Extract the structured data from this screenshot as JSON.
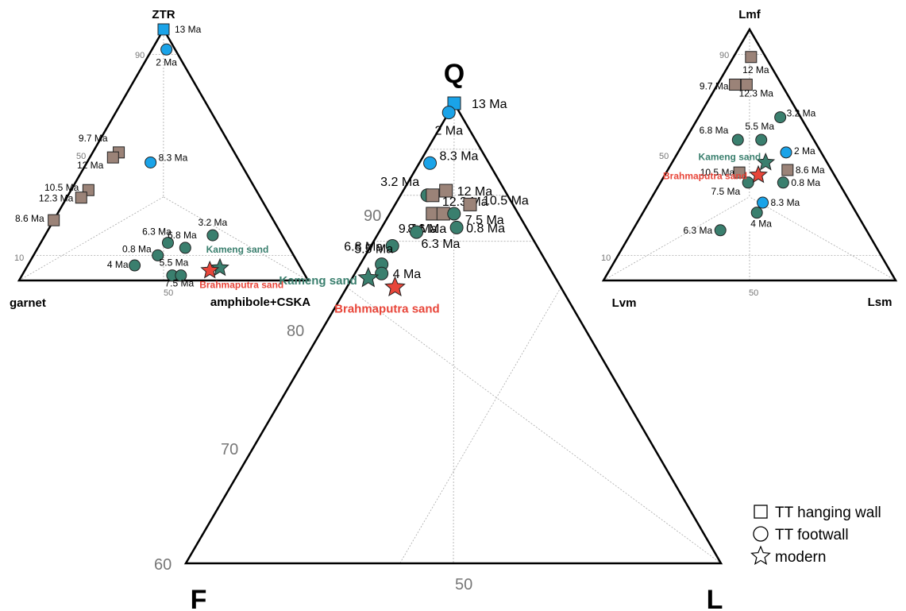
{
  "colors": {
    "hanging_wall": "#9b8378",
    "footwall": "#3a7f6e",
    "young": "#1aa3e8",
    "kameng": "#3a7f6e",
    "brahmaputra": "#e8463a",
    "frame": "#000000",
    "grid": "#aaaaaa",
    "tick": "#777777"
  },
  "legend": {
    "items": [
      {
        "symbol": "square-icon",
        "label": "TT hanging wall"
      },
      {
        "symbol": "circle-icon",
        "label": "TT footwall"
      },
      {
        "symbol": "star-icon",
        "label": "modern"
      }
    ]
  },
  "chart_data": [
    {
      "type": "ternary-scatter",
      "id": "heavy",
      "apex_labels": {
        "top": "ZTR",
        "left": "garnet",
        "right": "amphibole+CSKA"
      },
      "grid_labels": [
        "90",
        "50",
        "10",
        "50"
      ],
      "points": [
        {
          "label": "13 Ma",
          "group": "young",
          "shape": "square",
          "t": 100,
          "r": 0
        },
        {
          "label": "2 Ma",
          "group": "young",
          "shape": "circle",
          "t": 92,
          "r": 5
        },
        {
          "label": "9.7 Ma",
          "group": "hanging_wall",
          "shape": "square",
          "t": 51,
          "r": 9
        },
        {
          "label": "12 Ma",
          "group": "hanging_wall",
          "shape": "square",
          "t": 49,
          "r": 8
        },
        {
          "label": "8.3 Ma",
          "group": "young",
          "shape": "circle",
          "t": 47,
          "r": 22
        },
        {
          "label": "10.5 Ma",
          "group": "hanging_wall",
          "shape": "square",
          "t": 36,
          "r": 6
        },
        {
          "label": "12.3 Ma",
          "group": "hanging_wall",
          "shape": "square",
          "t": 33,
          "r": 5
        },
        {
          "label": "8.6 Ma",
          "group": "hanging_wall",
          "shape": "square",
          "t": 24,
          "r": 0
        },
        {
          "label": "3.2 Ma",
          "group": "footwall",
          "shape": "circle",
          "t": 18,
          "r": 58
        },
        {
          "label": "6.3 Ma",
          "group": "footwall",
          "shape": "circle",
          "t": 15,
          "r": 44
        },
        {
          "label": "6.8 Ma",
          "group": "footwall",
          "shape": "circle",
          "t": 13,
          "r": 51
        },
        {
          "label": "0.8 Ma",
          "group": "footwall",
          "shape": "circle",
          "t": 10,
          "r": 43
        },
        {
          "label": "4 Ma",
          "group": "footwall",
          "shape": "circle",
          "t": 6,
          "r": 37
        },
        {
          "label": "5.5 Ma",
          "group": "footwall",
          "shape": "circle",
          "t": 2,
          "r": 52
        },
        {
          "label": "7.5 Ma",
          "group": "footwall",
          "shape": "circle",
          "t": 2,
          "r": 55
        },
        {
          "label": "Kameng sand",
          "group": "kameng",
          "shape": "star",
          "t": 5,
          "r": 67
        },
        {
          "label": "Brahmaputra sand",
          "group": "brahmaputra",
          "shape": "star",
          "t": 4,
          "r": 64
        }
      ]
    },
    {
      "type": "ternary-scatter",
      "id": "qfl",
      "apex_labels": {
        "top": "Q",
        "left": "F",
        "right": "L"
      },
      "grid_labels": [
        "90",
        "80",
        "70",
        "60",
        "50"
      ],
      "points": [
        {
          "label": "13 Ma",
          "group": "young",
          "shape": "square",
          "t": 100,
          "r": 0
        },
        {
          "label": "2 Ma",
          "group": "young",
          "shape": "circle",
          "t": 98,
          "r": 0
        },
        {
          "label": "8.3 Ma",
          "group": "young",
          "shape": "circle",
          "t": 87,
          "r": 2
        },
        {
          "label": "12 Ma",
          "group": "hanging_wall",
          "shape": "square",
          "t": 81,
          "r": 8
        },
        {
          "label": "3.2 Ma",
          "group": "footwall",
          "shape": "circle",
          "t": 80,
          "r": 5
        },
        {
          "label": "12.3 Ma",
          "group": "hanging_wall",
          "shape": "square",
          "t": 80,
          "r": 6
        },
        {
          "label": "10.5 Ma",
          "group": "hanging_wall",
          "shape": "square",
          "t": 78,
          "r": 14
        },
        {
          "label": "9.7 Ma",
          "group": "hanging_wall",
          "shape": "square",
          "t": 76,
          "r": 8
        },
        {
          "label": "8.6 Ma",
          "group": "hanging_wall",
          "shape": "square",
          "t": 76,
          "r": 10
        },
        {
          "label": "7.5 Ma",
          "group": "footwall",
          "shape": "circle",
          "t": 76,
          "r": 12
        },
        {
          "label": "0.8 Ma",
          "group": "footwall",
          "shape": "circle",
          "t": 73,
          "r": 14
        },
        {
          "label": "6.3 Ma",
          "group": "footwall",
          "shape": "circle",
          "t": 72,
          "r": 7
        },
        {
          "label": "6.8 Ma",
          "group": "footwall",
          "shape": "circle",
          "t": 69,
          "r": 4
        },
        {
          "label": "5.5 Ma",
          "group": "footwall",
          "shape": "circle",
          "t": 65,
          "r": 4
        },
        {
          "label": "4 Ma",
          "group": "footwall",
          "shape": "circle",
          "t": 63,
          "r": 5
        },
        {
          "label": "Kameng sand",
          "group": "kameng",
          "shape": "star",
          "t": 62,
          "r": 3
        },
        {
          "label": "Brahmaputra sand",
          "group": "brahmaputra",
          "shape": "star",
          "t": 60,
          "r": 9
        }
      ]
    },
    {
      "type": "ternary-scatter",
      "id": "lithic",
      "apex_labels": {
        "top": "Lmf",
        "left": "Lvm",
        "right": "Lsm"
      },
      "grid_labels": [
        "90",
        "50",
        "10",
        "50"
      ],
      "points": [
        {
          "label": "12 Ma",
          "group": "hanging_wall",
          "shape": "square",
          "t": 89,
          "r": 6
        },
        {
          "label": "9.7 Ma",
          "group": "hanging_wall",
          "shape": "square",
          "t": 78,
          "r": 6
        },
        {
          "label": "12.3 Ma",
          "group": "hanging_wall",
          "shape": "square",
          "t": 78,
          "r": 10
        },
        {
          "label": "3.2 Ma",
          "group": "footwall",
          "shape": "circle",
          "t": 65,
          "r": 28
        },
        {
          "label": "6.8 Ma",
          "group": "footwall",
          "shape": "circle",
          "t": 56,
          "r": 18
        },
        {
          "label": "5.5 Ma",
          "group": "footwall",
          "shape": "circle",
          "t": 56,
          "r": 26
        },
        {
          "label": "2 Ma",
          "group": "young",
          "shape": "circle",
          "t": 51,
          "r": 37
        },
        {
          "label": "Kameng sand",
          "group": "kameng",
          "shape": "star",
          "t": 47,
          "r": 32
        },
        {
          "label": "10.5 Ma",
          "group": "hanging_wall",
          "shape": "square",
          "t": 43,
          "r": 25
        },
        {
          "label": "8.6 Ma",
          "group": "hanging_wall",
          "shape": "square",
          "t": 44,
          "r": 41
        },
        {
          "label": "Brahmaputra sand",
          "group": "brahmaputra",
          "shape": "star",
          "t": 42,
          "r": 32
        },
        {
          "label": "7.5 Ma",
          "group": "footwall",
          "shape": "circle",
          "t": 39,
          "r": 30
        },
        {
          "label": "0.8 Ma",
          "group": "footwall",
          "shape": "circle",
          "t": 39,
          "r": 42
        },
        {
          "label": "8.3 Ma",
          "group": "young",
          "shape": "circle",
          "t": 31,
          "r": 39
        },
        {
          "label": "4 Ma",
          "group": "footwall",
          "shape": "circle",
          "t": 27,
          "r": 39
        },
        {
          "label": "6.3 Ma",
          "group": "footwall",
          "shape": "circle",
          "t": 20,
          "r": 30
        }
      ]
    }
  ]
}
